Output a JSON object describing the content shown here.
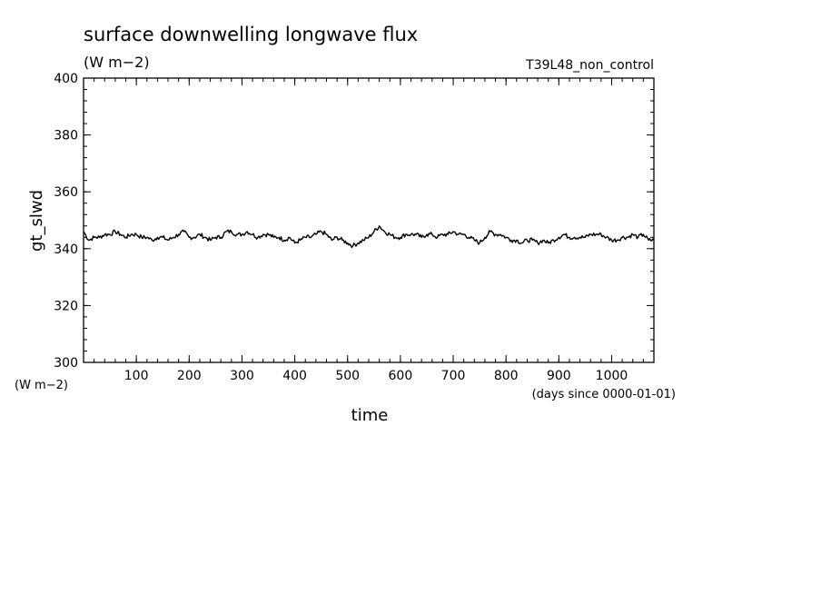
{
  "chart_data": {
    "type": "line",
    "title": "surface downwelling longwave flux",
    "subtitle": "(W m−2)",
    "run_label": "T39L48_non_control",
    "ylabel": "gt_slwd",
    "y_unit": "(W m−2)",
    "xlabel": "time",
    "x_unit": "(days since 0000-01-01)",
    "xlim": [
      0,
      1080
    ],
    "ylim": [
      300,
      400
    ],
    "x_ticks": [
      100,
      200,
      300,
      400,
      500,
      600,
      700,
      800,
      900,
      1000
    ],
    "y_ticks": [
      300,
      320,
      340,
      360,
      380,
      400
    ],
    "grid": false,
    "series": [
      {
        "x": [
          0,
          10,
          20,
          30,
          40,
          50,
          60,
          70,
          80,
          90,
          100,
          110,
          120,
          130,
          140,
          150,
          160,
          170,
          180,
          190,
          200,
          210,
          220,
          230,
          240,
          250,
          260,
          270,
          280,
          290,
          300,
          310,
          320,
          330,
          340,
          350,
          360,
          370,
          380,
          390,
          400,
          410,
          420,
          430,
          440,
          450,
          460,
          470,
          480,
          490,
          500,
          510,
          520,
          530,
          540,
          550,
          560,
          570,
          580,
          590,
          600,
          610,
          620,
          630,
          640,
          650,
          660,
          670,
          680,
          690,
          700,
          710,
          720,
          730,
          740,
          750,
          760,
          770,
          780,
          790,
          800,
          810,
          820,
          830,
          840,
          850,
          860,
          870,
          880,
          890,
          900,
          910,
          920,
          930,
          940,
          950,
          960,
          970,
          980,
          990,
          1000,
          1010,
          1020,
          1030,
          1040,
          1050,
          1060,
          1070,
          1080
        ],
        "values": [
          346,
          343,
          344,
          344,
          345,
          345,
          346,
          345,
          344,
          345,
          345,
          344,
          344,
          343,
          344,
          344,
          343,
          344,
          345,
          346,
          344,
          344,
          345,
          344,
          343,
          344,
          344,
          346,
          346,
          345,
          345,
          346,
          345,
          344,
          345,
          345,
          344,
          344,
          343,
          344,
          342,
          343,
          344,
          344,
          345,
          346,
          345,
          343,
          344,
          343,
          342,
          341,
          342,
          343,
          344,
          346,
          348,
          346,
          345,
          344,
          344,
          345,
          345,
          345,
          344,
          345,
          345,
          344,
          345,
          345,
          346,
          345,
          345,
          344,
          343,
          342,
          344,
          346,
          345,
          345,
          344,
          343,
          343,
          342,
          343,
          343,
          342,
          343,
          342,
          343,
          344,
          345,
          344,
          344,
          344,
          344,
          345,
          345,
          345,
          344,
          343,
          343,
          344,
          344,
          345,
          344,
          345,
          343,
          343
        ]
      }
    ]
  }
}
